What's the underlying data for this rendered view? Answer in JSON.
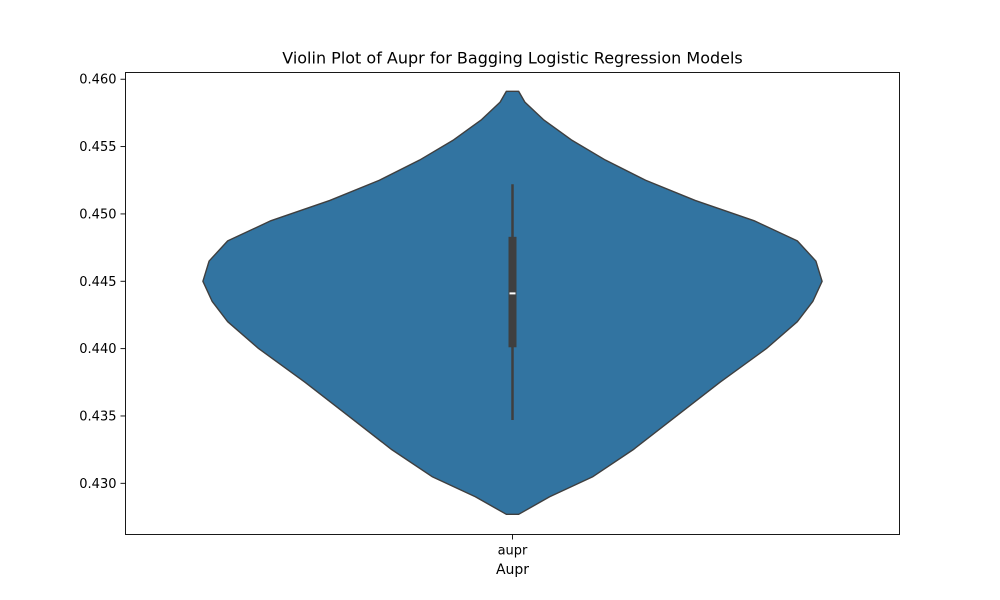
{
  "chart_data": {
    "type": "violin",
    "title": "Violin Plot of Aupr for Bagging Logistic Regression Models",
    "xlabel": "Aupr",
    "ylabel": "",
    "categories": [
      "aupr"
    ],
    "ylim": [
      0.4262,
      0.4605
    ],
    "yticks": [
      0.43,
      0.435,
      0.44,
      0.445,
      0.45,
      0.455,
      0.46
    ],
    "ytick_labels": [
      "0.430",
      "0.435",
      "0.440",
      "0.445",
      "0.450",
      "0.455",
      "0.460"
    ],
    "grid": false,
    "color": "#3274a1",
    "series": [
      {
        "category": "aupr",
        "range": [
          0.4277,
          0.4591
        ],
        "whisker_low": 0.4347,
        "q1": 0.4401,
        "median": 0.4441,
        "q3": 0.4483,
        "whisker_high": 0.4522,
        "density": [
          [
            0.4277,
            0.02
          ],
          [
            0.429,
            0.12
          ],
          [
            0.4305,
            0.26
          ],
          [
            0.4325,
            0.39
          ],
          [
            0.435,
            0.53
          ],
          [
            0.4375,
            0.67
          ],
          [
            0.44,
            0.82
          ],
          [
            0.442,
            0.92
          ],
          [
            0.4435,
            0.97
          ],
          [
            0.445,
            1.0
          ],
          [
            0.4465,
            0.98
          ],
          [
            0.448,
            0.92
          ],
          [
            0.4495,
            0.78
          ],
          [
            0.451,
            0.59
          ],
          [
            0.4525,
            0.43
          ],
          [
            0.454,
            0.3
          ],
          [
            0.4555,
            0.19
          ],
          [
            0.457,
            0.1
          ],
          [
            0.4583,
            0.04
          ],
          [
            0.4591,
            0.02
          ]
        ]
      }
    ]
  }
}
